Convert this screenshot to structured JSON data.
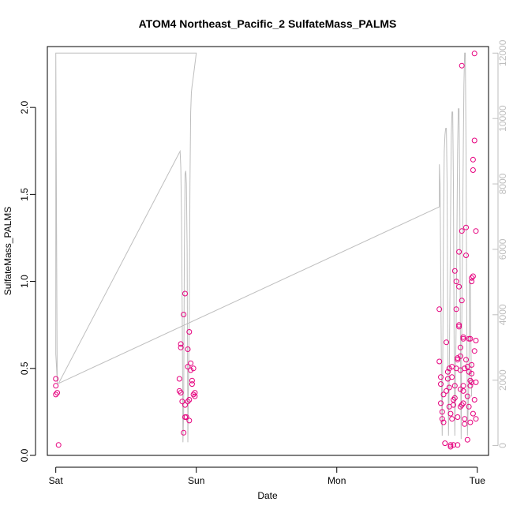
{
  "chart_data": {
    "type": "scatter",
    "title": "ATOM4 Northeast_Pacific_2 SulfateMass_PALMS",
    "xlabel": "Date",
    "ylabel": "SulfateMass_PALMS",
    "x_ticks": [
      "Sat",
      "Sun",
      "Mon",
      "Tue"
    ],
    "x_unit": "days since Saturday 00:00",
    "xlim": [
      -0.06,
      3.08
    ],
    "ylim": [
      0,
      2.35
    ],
    "y_ticks": [
      0.0,
      0.5,
      1.0,
      1.5,
      2.0
    ],
    "y_tick_labels": [
      "0.0",
      "0.5",
      "1.0",
      "1.5",
      "2.0"
    ],
    "y2lim": [
      -300,
      12200
    ],
    "y2_ticks": [
      0,
      2000,
      4000,
      6000,
      8000,
      10000,
      12000
    ],
    "y2_tick_labels": [
      "0",
      "2000",
      "4000",
      "6000",
      "8000",
      "10000",
      "12000"
    ],
    "colors": {
      "points": "#e6007e",
      "altitude_line": "#bebebe",
      "right_axis": "#bebebe",
      "frame": "#000000"
    },
    "grid": false,
    "series": [
      {
        "kind": "points",
        "axis": "left",
        "points": [
          [
            0.0,
            0.44
          ],
          [
            0.0,
            0.4
          ],
          [
            0.01,
            0.36
          ],
          [
            0.0,
            0.35
          ],
          [
            0.02,
            0.06
          ],
          [
            0.88,
            0.37
          ],
          [
            0.88,
            0.44
          ],
          [
            0.89,
            0.36
          ],
          [
            0.89,
            0.62
          ],
          [
            0.89,
            0.64
          ],
          [
            0.9,
            0.31
          ],
          [
            0.91,
            0.81
          ],
          [
            0.92,
            0.93
          ],
          [
            0.91,
            0.13
          ],
          [
            0.92,
            0.29
          ],
          [
            0.92,
            0.22
          ],
          [
            0.93,
            0.22
          ],
          [
            0.94,
            0.31
          ],
          [
            0.94,
            0.51
          ],
          [
            0.94,
            0.61
          ],
          [
            0.95,
            0.71
          ],
          [
            0.95,
            0.32
          ],
          [
            0.95,
            0.2
          ],
          [
            0.96,
            0.49
          ],
          [
            0.96,
            0.53
          ],
          [
            0.97,
            0.43
          ],
          [
            0.97,
            0.41
          ],
          [
            0.98,
            0.5
          ],
          [
            0.98,
            0.35
          ],
          [
            0.99,
            0.36
          ],
          [
            0.99,
            0.34
          ],
          [
            2.73,
            0.84
          ],
          [
            2.73,
            0.54
          ],
          [
            2.74,
            0.45
          ],
          [
            2.74,
            0.41
          ],
          [
            2.74,
            0.3
          ],
          [
            2.75,
            0.25
          ],
          [
            2.75,
            0.21
          ],
          [
            2.76,
            0.19
          ],
          [
            2.76,
            0.35
          ],
          [
            2.77,
            0.07
          ],
          [
            2.78,
            0.65
          ],
          [
            2.78,
            0.37
          ],
          [
            2.79,
            0.48
          ],
          [
            2.79,
            0.44
          ],
          [
            2.8,
            0.5
          ],
          [
            2.8,
            0.39
          ],
          [
            2.8,
            0.28
          ],
          [
            2.81,
            0.24
          ],
          [
            2.81,
            0.06
          ],
          [
            2.81,
            0.05
          ],
          [
            2.82,
            0.51
          ],
          [
            2.82,
            0.45
          ],
          [
            2.82,
            0.21
          ],
          [
            2.83,
            0.06
          ],
          [
            2.83,
            0.32
          ],
          [
            2.83,
            0.29
          ],
          [
            2.84,
            0.4
          ],
          [
            2.84,
            0.33
          ],
          [
            2.84,
            1.06
          ],
          [
            2.85,
            0.84
          ],
          [
            2.85,
            1.0
          ],
          [
            2.85,
            0.5
          ],
          [
            2.86,
            0.22
          ],
          [
            2.86,
            0.06
          ],
          [
            2.86,
            0.56
          ],
          [
            2.86,
            0.55
          ],
          [
            2.87,
            1.17
          ],
          [
            2.87,
            0.97
          ],
          [
            2.87,
            0.75
          ],
          [
            2.87,
            0.74
          ],
          [
            2.88,
            0.62
          ],
          [
            2.88,
            0.49
          ],
          [
            2.88,
            0.38
          ],
          [
            2.88,
            0.28
          ],
          [
            2.88,
            0.57
          ],
          [
            2.89,
            0.89
          ],
          [
            2.89,
            0.29
          ],
          [
            2.89,
            1.29
          ],
          [
            2.89,
            2.24
          ],
          [
            2.9,
            0.68
          ],
          [
            2.9,
            0.67
          ],
          [
            2.9,
            0.4
          ],
          [
            2.9,
            0.3
          ],
          [
            2.9,
            0.37
          ],
          [
            2.91,
            0.5
          ],
          [
            2.91,
            0.18
          ],
          [
            2.91,
            0.21
          ],
          [
            2.92,
            1.15
          ],
          [
            2.92,
            1.31
          ],
          [
            2.92,
            0.55
          ],
          [
            2.93,
            0.51
          ],
          [
            2.93,
            0.34
          ],
          [
            2.93,
            0.09
          ],
          [
            2.94,
            0.28
          ],
          [
            2.94,
            0.48
          ],
          [
            2.94,
            0.67
          ],
          [
            2.95,
            0.19
          ],
          [
            2.95,
            0.4
          ],
          [
            2.95,
            0.67
          ],
          [
            2.95,
            0.43
          ],
          [
            2.96,
            0.52
          ],
          [
            2.96,
            1.0
          ],
          [
            2.96,
            1.02
          ],
          [
            2.96,
            0.47
          ],
          [
            2.96,
            0.42
          ],
          [
            2.97,
            0.24
          ],
          [
            2.97,
            1.7
          ],
          [
            2.97,
            1.64
          ],
          [
            2.97,
            1.03
          ],
          [
            2.98,
            0.6
          ],
          [
            2.98,
            0.32
          ],
          [
            2.98,
            1.81
          ],
          [
            2.98,
            2.31
          ],
          [
            2.99,
            1.29
          ],
          [
            2.99,
            0.66
          ],
          [
            2.99,
            0.42
          ],
          [
            2.99,
            0.21
          ]
        ]
      },
      {
        "kind": "line",
        "axis": "right",
        "points": [
          [
            0.0,
            12000
          ],
          [
            0.0,
            2800
          ],
          [
            0.01,
            2000
          ],
          [
            0.01,
            1900
          ],
          [
            0.0,
            12000
          ],
          [
            1.0,
            12000
          ],
          [
            1.0,
            12000
          ],
          [
            0.98,
            11300
          ],
          [
            0.97,
            11000
          ],
          [
            0.965,
            10800
          ],
          [
            0.96,
            10200
          ],
          [
            0.955,
            8000
          ],
          [
            0.95,
            4000
          ],
          [
            0.945,
            2000
          ],
          [
            0.94,
            100
          ],
          [
            0.935,
            6000
          ],
          [
            0.93,
            8000
          ],
          [
            0.925,
            8400
          ],
          [
            0.92,
            8300
          ],
          [
            0.915,
            6000
          ],
          [
            0.91,
            1000
          ],
          [
            0.905,
            100
          ],
          [
            0.9,
            4000
          ],
          [
            0.895,
            7000
          ],
          [
            0.89,
            8500
          ],
          [
            0.885,
            9000
          ],
          [
            0.02,
            1900
          ],
          [
            2.73,
            7300
          ],
          [
            2.73,
            8600
          ],
          [
            2.735,
            8000
          ],
          [
            2.74,
            5000
          ],
          [
            2.745,
            2000
          ],
          [
            2.75,
            300
          ],
          [
            2.755,
            3000
          ],
          [
            2.76,
            7000
          ],
          [
            2.765,
            9000
          ],
          [
            2.77,
            9500
          ],
          [
            2.775,
            9700
          ],
          [
            2.78,
            9700
          ],
          [
            2.785,
            8000
          ],
          [
            2.79,
            3000
          ],
          [
            2.795,
            300
          ],
          [
            2.8,
            2000
          ],
          [
            2.81,
            7000
          ],
          [
            2.815,
            9500
          ],
          [
            2.82,
            10200
          ],
          [
            2.825,
            10200
          ],
          [
            2.83,
            8000
          ],
          [
            2.835,
            3000
          ],
          [
            2.84,
            300
          ],
          [
            2.85,
            4000
          ],
          [
            2.86,
            9000
          ],
          [
            2.865,
            10300
          ],
          [
            2.87,
            10300
          ],
          [
            2.875,
            8000
          ],
          [
            2.88,
            3000
          ],
          [
            2.885,
            200
          ],
          [
            2.89,
            4000
          ],
          [
            2.9,
            9000
          ],
          [
            2.905,
            11000
          ],
          [
            2.91,
            12000
          ],
          [
            2.915,
            12000
          ],
          [
            2.92,
            9000
          ],
          [
            2.925,
            4000
          ],
          [
            2.93,
            300
          ],
          [
            2.94,
            2000
          ],
          [
            2.945,
            5000
          ],
          [
            2.95,
            5000
          ],
          [
            2.955,
            3000
          ],
          [
            2.96,
            1500
          ]
        ]
      }
    ]
  }
}
